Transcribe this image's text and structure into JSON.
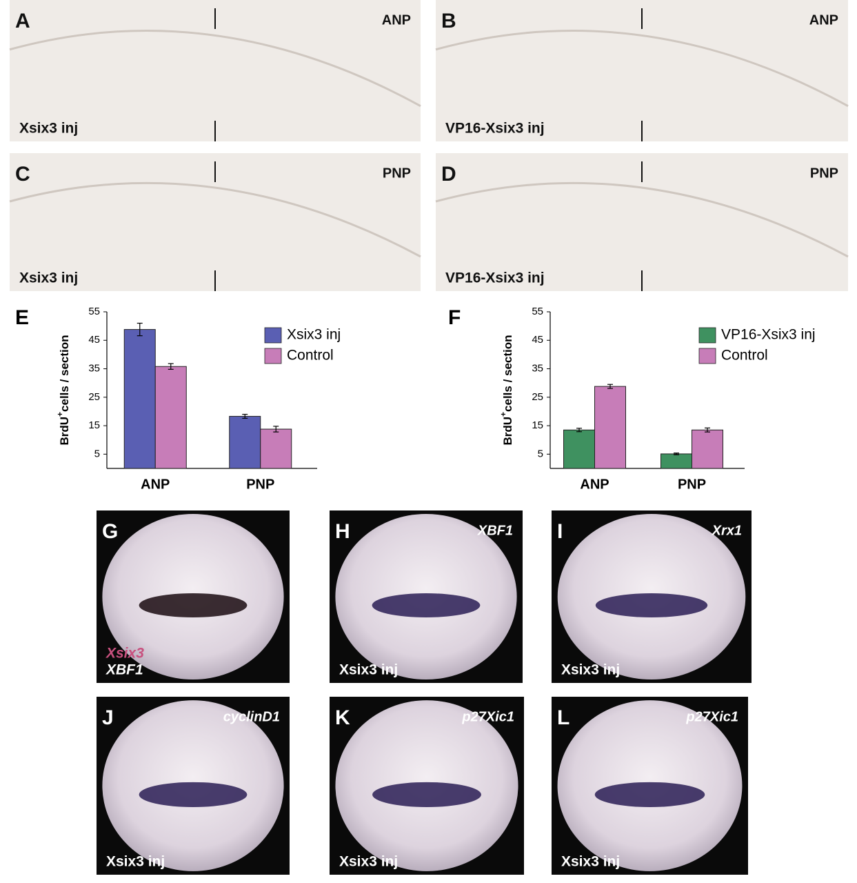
{
  "panels": [
    {
      "letter": "A",
      "tag": "ANP",
      "captions": [
        "Xsix3 inj"
      ]
    },
    {
      "letter": "B",
      "tag": "ANP",
      "captions": [
        "VP16-Xsix3 inj"
      ]
    },
    {
      "letter": "C",
      "tag": "PNP",
      "captions": [
        "Xsix3 inj"
      ]
    },
    {
      "letter": "D",
      "tag": "PNP",
      "captions": [
        "VP16-Xsix3 inj"
      ]
    },
    {
      "letter": "G",
      "captions": [
        "Xsix3",
        "XBF1"
      ]
    },
    {
      "letter": "H",
      "tag": "XBF1",
      "captions": [
        "Xsix3 inj"
      ]
    },
    {
      "letter": "I",
      "tag": "Xrx1",
      "captions": [
        "Xsix3 inj"
      ]
    },
    {
      "letter": "J",
      "tag": "cyclinD1",
      "captions": [
        "Xsix3 inj"
      ]
    },
    {
      "letter": "K",
      "tag": "p27Xic1",
      "captions": [
        "Xsix3 inj"
      ]
    },
    {
      "letter": "L",
      "tag": "p27Xic1",
      "captions": [
        "Xsix3 inj"
      ]
    }
  ],
  "chart_data": [
    {
      "type": "bar",
      "letter": "E",
      "ylabel": [
        "BrdU",
        "+",
        "cells / section"
      ],
      "categories": [
        "ANP",
        "PNP"
      ],
      "series": [
        {
          "name": "Xsix3 inj",
          "color": "#5a5fb3",
          "values": [
            48.8,
            18.3
          ],
          "errors": [
            2.2,
            0.7
          ]
        },
        {
          "name": "Control",
          "color": "#c77db8",
          "values": [
            35.8,
            13.8
          ],
          "errors": [
            1.0,
            1.0
          ]
        }
      ],
      "ylim": [
        0,
        55
      ],
      "yticks": [
        5,
        15,
        25,
        35,
        45,
        55
      ]
    },
    {
      "type": "bar",
      "letter": "F",
      "ylabel": [
        "BrdU",
        "+",
        "cells / section"
      ],
      "categories": [
        "ANP",
        "PNP"
      ],
      "series": [
        {
          "name": "VP16-Xsix3 inj",
          "color": "#3f9160",
          "values": [
            13.5,
            5.1
          ],
          "errors": [
            0.6,
            0.3
          ]
        },
        {
          "name": "Control",
          "color": "#c77db8",
          "values": [
            28.8,
            13.5
          ],
          "errors": [
            0.7,
            0.7
          ]
        }
      ],
      "ylim": [
        0,
        55
      ],
      "yticks": [
        5,
        15,
        25,
        35,
        45,
        55
      ]
    }
  ]
}
